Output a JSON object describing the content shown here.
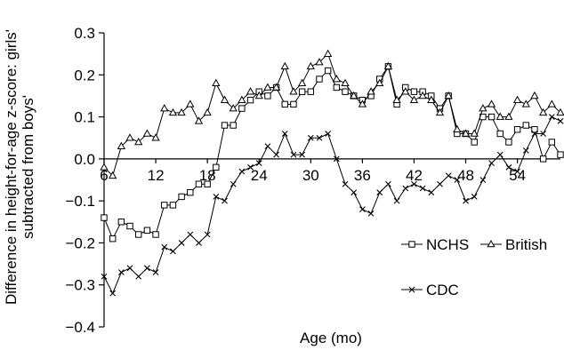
{
  "chart_data": {
    "type": "line",
    "title": "",
    "xlabel": "Age (mo)",
    "ylabel_lines": [
      "Difference in height-for-age z-score: girls'",
      "subtracted from boys'"
    ],
    "xlim": [
      6,
      59
    ],
    "ylim": [
      -0.4,
      0.3
    ],
    "xticks": [
      6,
      12,
      18,
      24,
      30,
      36,
      42,
      48,
      54
    ],
    "yticks": [
      -0.4,
      -0.3,
      -0.2,
      -0.1,
      0.0,
      0.1,
      0.2,
      0.3
    ],
    "ytick_labels": [
      "−0.4",
      "−0.3",
      "−0.2",
      "−0.1",
      "0.0",
      "0.1",
      "0.2",
      "0.3"
    ],
    "x": [
      6,
      7,
      8,
      9,
      10,
      11,
      12,
      13,
      14,
      15,
      16,
      17,
      18,
      19,
      20,
      21,
      22,
      23,
      24,
      25,
      26,
      27,
      28,
      29,
      30,
      31,
      32,
      33,
      34,
      35,
      36,
      37,
      38,
      39,
      40,
      41,
      42,
      43,
      44,
      45,
      46,
      47,
      48,
      49,
      50,
      51,
      52,
      53,
      54,
      55,
      56,
      57,
      58,
      59
    ],
    "legend_position": "bottom-right",
    "series": [
      {
        "name": "NCHS",
        "marker": "square",
        "values": [
          -0.14,
          -0.19,
          -0.15,
          -0.16,
          -0.18,
          -0.17,
          -0.18,
          -0.11,
          -0.11,
          -0.09,
          -0.08,
          -0.06,
          -0.06,
          -0.02,
          0.08,
          0.08,
          0.12,
          0.14,
          0.16,
          0.15,
          0.17,
          0.13,
          0.13,
          0.16,
          0.16,
          0.19,
          0.21,
          0.17,
          0.16,
          0.15,
          0.14,
          0.15,
          0.19,
          0.22,
          0.13,
          0.17,
          0.16,
          0.16,
          0.15,
          0.12,
          0.15,
          0.06,
          0.06,
          0.04,
          0.1,
          0.1,
          0.06,
          0.04,
          0.07,
          0.08,
          0.07,
          0.0,
          0.04,
          0.01
        ]
      },
      {
        "name": "British",
        "marker": "triangle",
        "values": [
          -0.02,
          -0.04,
          0.03,
          0.05,
          0.04,
          0.06,
          0.05,
          0.12,
          0.11,
          0.11,
          0.13,
          0.09,
          0.11,
          0.18,
          0.14,
          0.12,
          0.14,
          0.16,
          0.15,
          0.17,
          0.17,
          0.22,
          0.16,
          0.18,
          0.22,
          0.23,
          0.25,
          0.19,
          0.18,
          0.15,
          0.13,
          0.16,
          0.18,
          0.22,
          0.14,
          0.16,
          0.14,
          0.15,
          0.14,
          0.11,
          0.15,
          0.07,
          0.06,
          0.06,
          0.12,
          0.13,
          0.1,
          0.1,
          0.14,
          0.13,
          0.15,
          0.11,
          0.13,
          0.11
        ]
      },
      {
        "name": "CDC",
        "marker": "x",
        "values": [
          -0.28,
          -0.32,
          -0.27,
          -0.26,
          -0.28,
          -0.26,
          -0.27,
          -0.21,
          -0.22,
          -0.2,
          -0.18,
          -0.2,
          -0.18,
          -0.09,
          -0.1,
          -0.06,
          -0.03,
          -0.02,
          -0.01,
          0.03,
          0.01,
          0.06,
          0.01,
          0.01,
          0.05,
          0.05,
          0.06,
          0.0,
          -0.06,
          -0.08,
          -0.12,
          -0.13,
          -0.08,
          -0.06,
          -0.1,
          -0.07,
          -0.06,
          -0.07,
          -0.08,
          -0.06,
          -0.04,
          -0.05,
          -0.1,
          -0.09,
          -0.05,
          -0.01,
          0.01,
          -0.02,
          -0.03,
          0.02,
          0.06,
          0.06,
          0.1,
          0.09
        ]
      }
    ]
  }
}
